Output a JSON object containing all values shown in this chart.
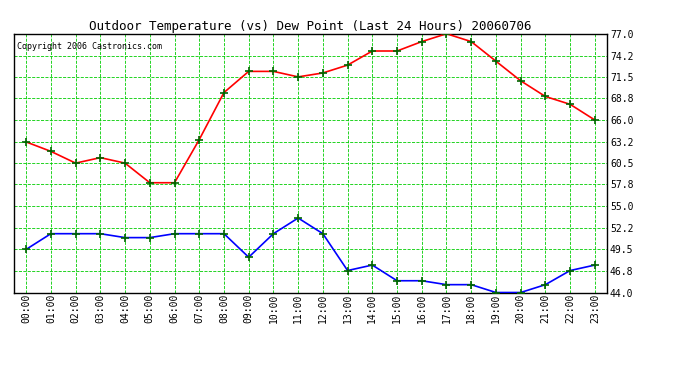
{
  "title": "Outdoor Temperature (vs) Dew Point (Last 24 Hours) 20060706",
  "copyright": "Copyright 2006 Castronics.com",
  "hours": [
    "00:00",
    "01:00",
    "02:00",
    "03:00",
    "04:00",
    "05:00",
    "06:00",
    "07:00",
    "08:00",
    "09:00",
    "10:00",
    "11:00",
    "12:00",
    "13:00",
    "14:00",
    "15:00",
    "16:00",
    "17:00",
    "18:00",
    "19:00",
    "20:00",
    "21:00",
    "22:00",
    "23:00"
  ],
  "temp": [
    63.2,
    62.0,
    60.5,
    61.2,
    60.5,
    58.0,
    58.0,
    63.5,
    69.5,
    72.2,
    72.2,
    71.5,
    72.0,
    73.0,
    74.8,
    74.8,
    76.0,
    77.0,
    76.0,
    73.5,
    71.0,
    69.0,
    68.0,
    66.0
  ],
  "dew": [
    49.5,
    51.5,
    51.5,
    51.5,
    51.0,
    51.0,
    51.5,
    51.5,
    51.5,
    48.5,
    51.5,
    53.5,
    51.5,
    46.8,
    47.5,
    45.5,
    45.5,
    45.0,
    45.0,
    44.0,
    44.0,
    45.0,
    46.8,
    47.5
  ],
  "temp_color": "#ff0000",
  "dew_color": "#0000ff",
  "marker": "+",
  "marker_color": "#006600",
  "bg_color": "#ffffff",
  "plot_bg_color": "#ffffff",
  "grid_color": "#00cc00",
  "title_color": "#000000",
  "copyright_color": "#000000",
  "yticks": [
    44.0,
    46.8,
    49.5,
    52.2,
    55.0,
    57.8,
    60.5,
    63.2,
    66.0,
    68.8,
    71.5,
    74.2,
    77.0
  ],
  "ymin": 44.0,
  "ymax": 77.0,
  "title_fontsize": 9,
  "tick_fontsize": 7,
  "copyright_fontsize": 6
}
